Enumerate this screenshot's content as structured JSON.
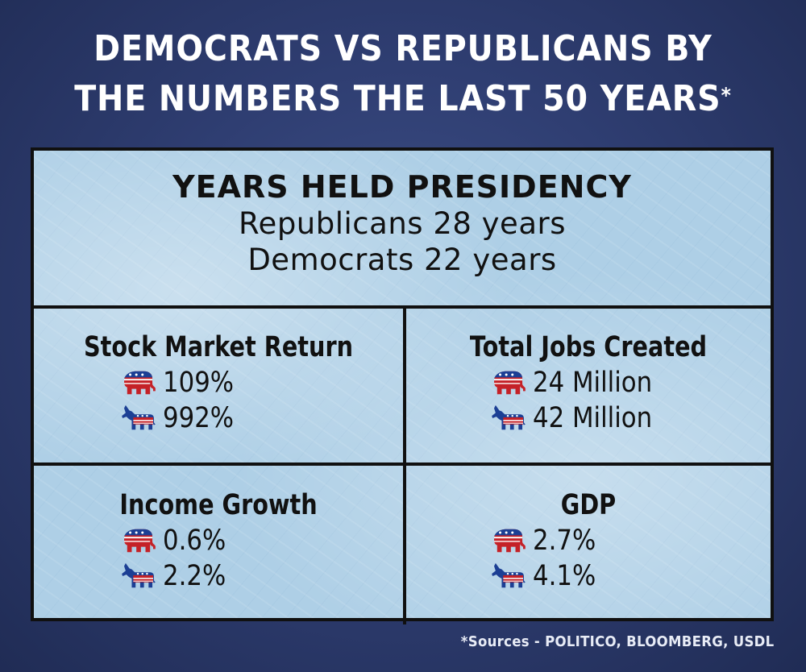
{
  "title": {
    "line1": "DEMOCRATS VS REPUBLICANS BY",
    "line2": "THE NUMBERS THE LAST 50 YEARS",
    "asterisk": "*"
  },
  "presidency": {
    "heading": "YEARS HELD PRESIDENCY",
    "republicans": "Republicans 28 years",
    "democrats": "Democrats 22 years"
  },
  "stats": [
    {
      "title": "Stock Market Return",
      "republican": "109%",
      "democrat": "992%"
    },
    {
      "title": "Total Jobs Created",
      "republican": "24 Million",
      "democrat": "42 Million"
    },
    {
      "title": "Income Growth",
      "republican": "0.6%",
      "democrat": "2.2%"
    },
    {
      "title": "GDP",
      "republican": "2.7%",
      "democrat": "4.1%"
    }
  ],
  "icons": {
    "republican": "republican-elephant-icon",
    "democrat": "democrat-donkey-icon"
  },
  "colors": {
    "red": "#c42127",
    "blue": "#1c3f94",
    "panel": "#aecfe6",
    "background": "#2f3e72"
  },
  "footnote": "*Sources - POLITICO, BLOOMBERG, USDL"
}
